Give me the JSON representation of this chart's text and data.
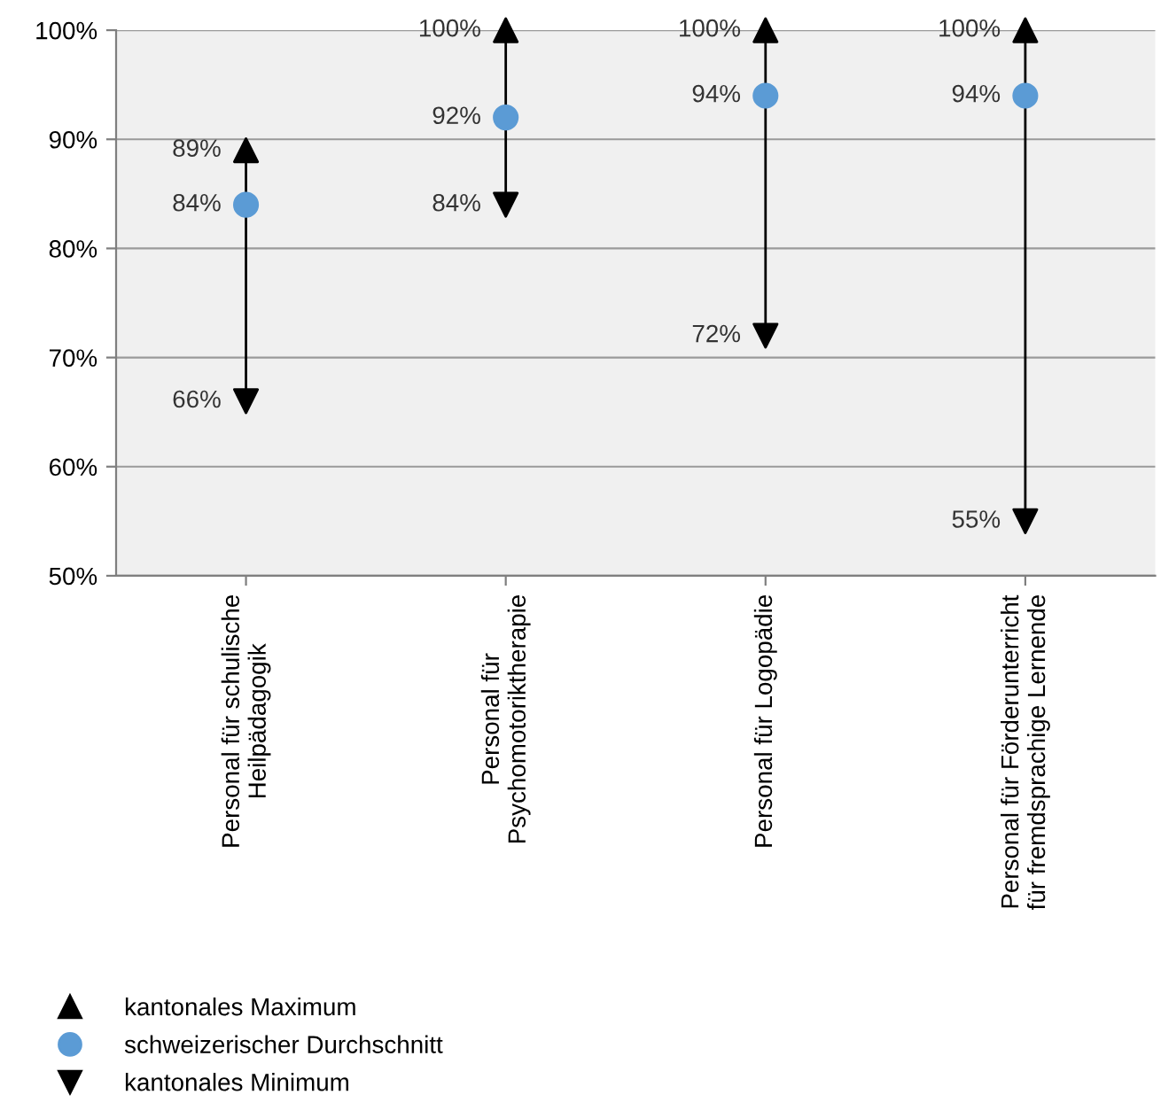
{
  "chart_data": {
    "type": "scatter",
    "categories": [
      "Personal für schulische\nHeilpädagogik",
      "Personal für\nPsychomotoriktherapie",
      "Personal für Logopädie",
      "Personal für Förderunterricht\nfür fremdsprachige Lernende"
    ],
    "series": [
      {
        "name": "kantonales Maximum",
        "color": "#000000",
        "marker": "triangle",
        "values": [
          89,
          100,
          100,
          100
        ],
        "value_labels": [
          "89%",
          "100%",
          "100%",
          "100%"
        ]
      },
      {
        "name": "schweizerischer Durchschnitt",
        "color": "#5b9bd5",
        "marker": "circle",
        "values": [
          84,
          92,
          94,
          94
        ],
        "value_labels": [
          "84%",
          "92%",
          "94%",
          "94%"
        ]
      },
      {
        "name": "kantonales Minimum",
        "color": "#000000",
        "marker": "triangle_down",
        "values": [
          66,
          84,
          72,
          55
        ],
        "value_labels": [
          "66%",
          "84%",
          "72%",
          "55%"
        ]
      }
    ],
    "ylim": [
      50,
      100
    ],
    "yticks": [
      {
        "value": 50,
        "label": "50%"
      },
      {
        "value": 60,
        "label": "60%"
      },
      {
        "value": 70,
        "label": "70%"
      },
      {
        "value": 80,
        "label": "80%"
      },
      {
        "value": 90,
        "label": "90%"
      },
      {
        "value": 100,
        "label": "100%"
      }
    ],
    "grid": "y",
    "legend": "bottom left"
  }
}
